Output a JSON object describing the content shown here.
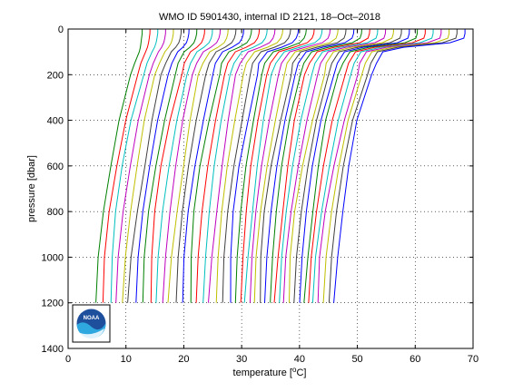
{
  "chart_data": {
    "type": "line",
    "title": "WMO ID 5901430, internal ID 2121, 18–Oct–2018",
    "xlabel": "temperature",
    "xlabel_unit_prefix": "[",
    "xlabel_unit_sup": "o",
    "xlabel_unit_suffix": "C]",
    "ylabel": "pressure [dbar]",
    "xlim": [
      0,
      70
    ],
    "ylim": [
      1400,
      0
    ],
    "y_reversed": true,
    "x_ticks": [
      "0",
      "10",
      "20",
      "30",
      "40",
      "50",
      "60",
      "70"
    ],
    "y_ticks": [
      "0",
      "200",
      "400",
      "600",
      "800",
      "1000",
      "1200",
      "1400"
    ],
    "grid": "dotted",
    "note": "waterfall of temperature profiles, each successive profile offset by ~1 °C",
    "pressure": [
      0,
      20,
      40,
      60,
      80,
      100,
      150,
      200,
      400,
      600,
      800,
      1000,
      1200
    ],
    "series_count": 42,
    "series_colors": [
      "#008000",
      "#ff0000",
      "#00bfbf",
      "#bf00bf",
      "#bfbf00",
      "#404040",
      "#0000ff"
    ],
    "representative_series": [
      {
        "temperature": [
          12.8,
          12.8,
          12.7,
          12.6,
          12.5,
          12.3,
          11.5,
          10.8,
          8.8,
          7.4,
          6.1,
          5.2,
          4.8
        ]
      },
      {
        "temperature": [
          40.5,
          40.4,
          40.1,
          39.4,
          37.5,
          35.0,
          33.5,
          33.0,
          31.6,
          30.3,
          29.4,
          28.8,
          28.5
        ]
      },
      {
        "temperature": [
          68.6,
          68.6,
          68.4,
          66.0,
          58.0,
          54.4,
          53.3,
          52.7,
          50.2,
          48.6,
          47.3,
          46.3,
          45.8
        ]
      }
    ]
  },
  "logo": {
    "text": "NOAA",
    "icon": "noaa-logo-icon"
  }
}
